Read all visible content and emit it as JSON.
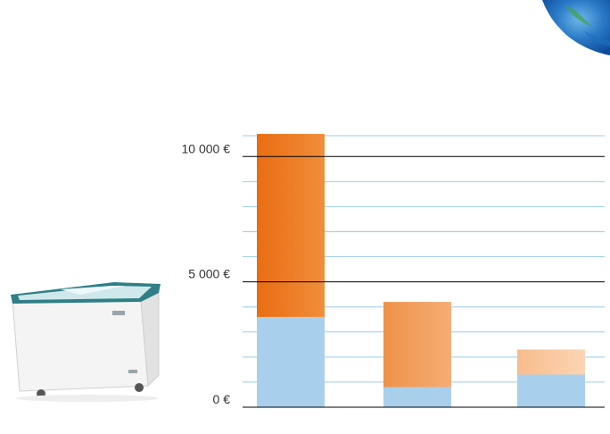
{
  "chart_data": {
    "type": "bar",
    "stacked": true,
    "categories": [
      "",
      "",
      ""
    ],
    "series": [
      {
        "values": [
          3600,
          800,
          1300
        ]
      },
      {
        "values": [
          7300,
          3400,
          1000
        ]
      }
    ],
    "ylim": [
      0,
      10900
    ],
    "yticks": [
      {
        "value": 0,
        "label": "0 €"
      },
      {
        "value": 5000,
        "label": "5 000 €"
      },
      {
        "value": 10000,
        "label": "10 000 €"
      }
    ],
    "minor_step": 1000,
    "grid": true,
    "legend": "none",
    "colors": {
      "base": "#a8d0ec",
      "minor_grid": "#9ccbe6",
      "major_grid": "#000000",
      "top_bar_1": [
        "#e96d12",
        "#f08e3c"
      ],
      "top_bar_2": [
        "#ef9248",
        "#f5ad75"
      ],
      "top_bar_3": [
        "#f8bc8c",
        "#fbd5b4"
      ]
    }
  },
  "illustrations": {
    "product": "chest-freezer-icon",
    "decoration": "blue-globe-corner-icon"
  }
}
